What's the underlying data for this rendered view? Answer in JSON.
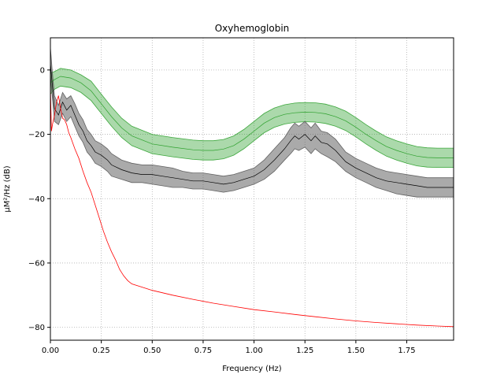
{
  "chart_data": {
    "type": "line",
    "title": "Oxyhemoglobin",
    "xlabel": "Frequency (Hz)",
    "ylabel": "µM²/Hz (dB)",
    "xlim": [
      0,
      1.98
    ],
    "ylim": [
      -84,
      10
    ],
    "grid": true,
    "grid_style": "dotted",
    "x_ticks": [
      0.0,
      0.25,
      0.5,
      0.75,
      1.0,
      1.25,
      1.5,
      1.75
    ],
    "x_tick_labels": [
      "0.00",
      "0.25",
      "0.50",
      "0.75",
      "1.00",
      "1.25",
      "1.50",
      "1.75"
    ],
    "y_ticks": [
      0,
      -20,
      -40,
      -60,
      -80
    ],
    "y_tick_labels": [
      "0",
      "−20",
      "−40",
      "−60",
      "−80"
    ],
    "series": [
      {
        "role": "band-mean",
        "color": "#2ca02c",
        "band_color": "#2ca02c",
        "band_opacity": 0.4,
        "x": [
          0.0,
          0.02,
          0.05,
          0.1,
          0.15,
          0.2,
          0.25,
          0.3,
          0.35,
          0.4,
          0.5,
          0.6,
          0.7,
          0.75,
          0.8,
          0.85,
          0.9,
          0.95,
          1.0,
          1.05,
          1.1,
          1.15,
          1.2,
          1.25,
          1.3,
          1.35,
          1.4,
          1.45,
          1.5,
          1.55,
          1.6,
          1.65,
          1.7,
          1.75,
          1.8,
          1.85,
          1.9,
          1.95,
          1.98
        ],
        "mean": [
          -4.0,
          -3.0,
          -2.0,
          -2.5,
          -4.0,
          -6.5,
          -10.5,
          -14.5,
          -18.0,
          -20.5,
          -23.0,
          -24.0,
          -24.8,
          -25.0,
          -25.0,
          -24.6,
          -23.5,
          -21.5,
          -19.0,
          -16.5,
          -14.8,
          -13.8,
          -13.3,
          -13.1,
          -13.2,
          -13.6,
          -14.5,
          -15.8,
          -17.8,
          -20.0,
          -22.0,
          -23.8,
          -25.0,
          -26.0,
          -26.8,
          -27.2,
          -27.3,
          -27.3,
          -27.3
        ],
        "lower": [
          -7.5,
          -6.0,
          -5.0,
          -5.5,
          -7.0,
          -9.5,
          -13.5,
          -17.5,
          -21.0,
          -23.5,
          -26.0,
          -27.0,
          -27.8,
          -28.0,
          -28.0,
          -27.6,
          -26.5,
          -24.5,
          -22.0,
          -19.5,
          -17.8,
          -16.8,
          -16.3,
          -16.1,
          -16.2,
          -16.6,
          -17.5,
          -18.8,
          -20.8,
          -23.0,
          -25.0,
          -26.8,
          -28.0,
          -29.0,
          -29.8,
          -30.2,
          -30.3,
          -30.3,
          -30.3
        ],
        "upper": [
          -1.0,
          -0.5,
          0.5,
          0.0,
          -1.5,
          -3.5,
          -7.5,
          -11.5,
          -15.0,
          -17.5,
          -20.0,
          -21.0,
          -21.8,
          -22.0,
          -22.0,
          -21.6,
          -20.5,
          -18.5,
          -16.0,
          -13.5,
          -11.8,
          -10.8,
          -10.3,
          -10.1,
          -10.2,
          -10.6,
          -11.5,
          -12.8,
          -14.8,
          -17.0,
          -19.0,
          -20.8,
          -22.0,
          -23.0,
          -23.8,
          -24.2,
          -24.3,
          -24.3,
          -24.3
        ]
      },
      {
        "role": "band-mean",
        "color": "#000000",
        "band_color": "#555555",
        "band_opacity": 0.5,
        "x": [
          0.0,
          0.01,
          0.02,
          0.04,
          0.06,
          0.08,
          0.1,
          0.12,
          0.14,
          0.16,
          0.18,
          0.2,
          0.22,
          0.25,
          0.28,
          0.3,
          0.35,
          0.4,
          0.45,
          0.5,
          0.55,
          0.6,
          0.65,
          0.7,
          0.75,
          0.8,
          0.85,
          0.9,
          0.95,
          1.0,
          1.05,
          1.1,
          1.15,
          1.18,
          1.2,
          1.22,
          1.25,
          1.28,
          1.3,
          1.33,
          1.36,
          1.4,
          1.45,
          1.5,
          1.55,
          1.6,
          1.65,
          1.7,
          1.75,
          1.8,
          1.85,
          1.9,
          1.95,
          1.98
        ],
        "mean": [
          2.0,
          -5.0,
          -12.0,
          -14.0,
          -10.0,
          -12.5,
          -11.0,
          -14.0,
          -17.0,
          -19.0,
          -22.0,
          -23.5,
          -25.5,
          -26.5,
          -28.0,
          -29.5,
          -31.0,
          -32.0,
          -32.5,
          -32.5,
          -33.0,
          -33.5,
          -34.0,
          -34.5,
          -34.5,
          -35.0,
          -35.5,
          -35.0,
          -34.0,
          -33.0,
          -31.0,
          -28.0,
          -24.5,
          -22.0,
          -20.5,
          -21.5,
          -20.0,
          -22.0,
          -20.5,
          -22.5,
          -23.0,
          -25.0,
          -28.5,
          -30.5,
          -32.0,
          -33.5,
          -34.5,
          -35.0,
          -35.5,
          -36.0,
          -36.5,
          -36.5,
          -36.5,
          -36.5
        ],
        "lower": [
          -2.0,
          -9.0,
          -16.0,
          -17.0,
          -13.5,
          -16.0,
          -14.5,
          -17.5,
          -20.5,
          -22.5,
          -25.5,
          -27.0,
          -29.0,
          -30.0,
          -31.5,
          -33.0,
          -34.0,
          -35.0,
          -35.0,
          -35.5,
          -36.0,
          -36.5,
          -36.5,
          -37.0,
          -37.0,
          -37.5,
          -38.0,
          -37.5,
          -36.5,
          -35.5,
          -34.0,
          -31.5,
          -28.0,
          -26.0,
          -24.5,
          -25.0,
          -24.0,
          -26.0,
          -24.5,
          -26.0,
          -27.0,
          -28.5,
          -31.5,
          -33.5,
          -35.0,
          -36.5,
          -37.5,
          -38.5,
          -39.0,
          -39.5,
          -39.5,
          -39.5,
          -39.5,
          -39.5
        ],
        "upper": [
          7.0,
          -1.0,
          -8.0,
          -11.0,
          -7.0,
          -9.0,
          -8.0,
          -10.5,
          -13.5,
          -15.5,
          -18.5,
          -20.0,
          -22.0,
          -23.0,
          -24.5,
          -26.0,
          -28.0,
          -29.0,
          -29.5,
          -29.5,
          -30.0,
          -30.5,
          -31.5,
          -32.0,
          -32.0,
          -32.5,
          -33.0,
          -32.5,
          -31.5,
          -30.5,
          -28.0,
          -24.5,
          -21.0,
          -18.0,
          -16.5,
          -17.5,
          -16.0,
          -18.0,
          -16.5,
          -19.0,
          -19.5,
          -21.5,
          -25.5,
          -27.5,
          -29.0,
          -30.5,
          -31.5,
          -32.0,
          -32.5,
          -33.0,
          -33.5,
          -33.5,
          -33.5,
          -33.5
        ]
      },
      {
        "role": "line",
        "color": "#ff0000",
        "x": [
          0.0,
          0.005,
          0.01,
          0.02,
          0.03,
          0.04,
          0.05,
          0.06,
          0.07,
          0.08,
          0.09,
          0.1,
          0.12,
          0.14,
          0.16,
          0.18,
          0.2,
          0.22,
          0.24,
          0.26,
          0.28,
          0.3,
          0.32,
          0.34,
          0.36,
          0.38,
          0.4,
          0.45,
          0.5,
          0.6,
          0.7,
          0.8,
          0.9,
          1.0,
          1.1,
          1.2,
          1.3,
          1.4,
          1.5,
          1.6,
          1.7,
          1.8,
          1.9,
          1.98
        ],
        "y": [
          -5.0,
          -19.0,
          -17.0,
          -14.0,
          -10.0,
          -8.0,
          -12.0,
          -15.0,
          -15.5,
          -17.0,
          -19.5,
          -21.0,
          -24.5,
          -27.5,
          -31.5,
          -35.0,
          -38.0,
          -42.0,
          -46.0,
          -50.0,
          -53.5,
          -56.5,
          -59.0,
          -62.0,
          -64.0,
          -65.5,
          -66.5,
          -67.5,
          -68.5,
          -70.0,
          -71.3,
          -72.5,
          -73.5,
          -74.5,
          -75.2,
          -76.0,
          -76.7,
          -77.4,
          -78.0,
          -78.5,
          -78.9,
          -79.3,
          -79.6,
          -79.8
        ]
      }
    ]
  }
}
